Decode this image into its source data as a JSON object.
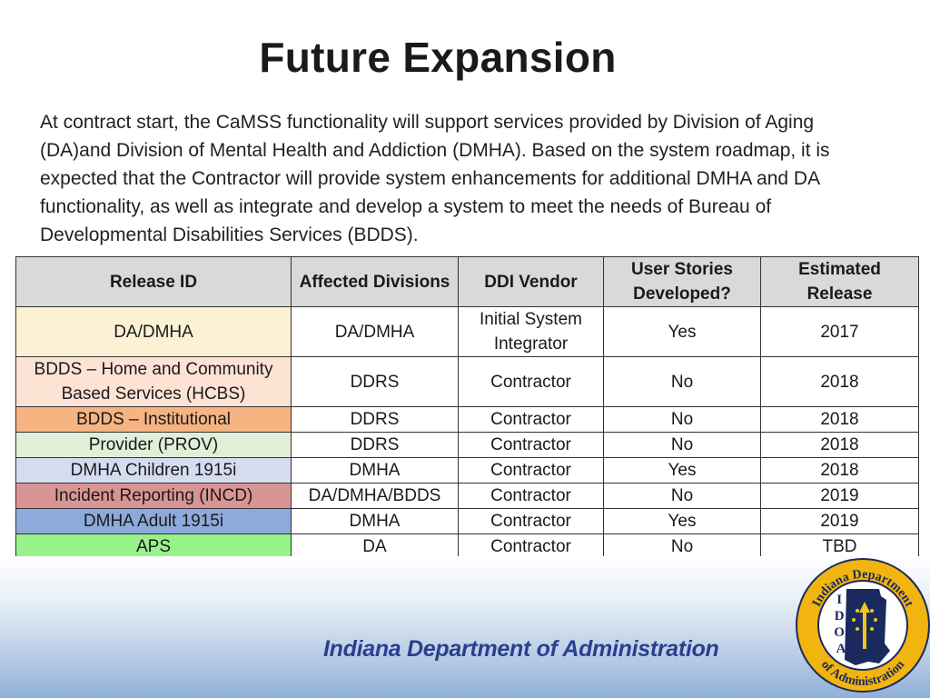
{
  "title": "Future Expansion",
  "intro": "At contract start, the CaMSS functionality will support services provided by Division of Aging (DA)and Division of Mental Health and Addiction (DMHA).  Based on the system roadmap, it is expected that the Contractor will provide system enhancements for additional DMHA and DA functionality, as well as integrate and develop a system to meet the needs of Bureau of Developmental Disabilities Services (BDDS).",
  "table": {
    "headers": [
      "Release ID",
      "Affected Divisions",
      "DDI Vendor",
      "User Stories Developed?",
      "Estimated Release"
    ],
    "rows": [
      {
        "release": "DA/DMHA",
        "color": "#fdf1d4",
        "divisions": "DA/DMHA",
        "vendor": "Initial System Integrator",
        "stories": "Yes",
        "est": "2017"
      },
      {
        "release": "BDDS – Home and Community Based Services (HCBS)",
        "color": "#fde3d4",
        "divisions": "DDRS",
        "vendor": "Contractor",
        "stories": "No",
        "est": "2018"
      },
      {
        "release": "BDDS – Institutional",
        "color": "#f6b483",
        "divisions": "DDRS",
        "vendor": "Contractor",
        "stories": "No",
        "est": "2018"
      },
      {
        "release": "Provider (PROV)",
        "color": "#e1efd8",
        "divisions": "DDRS",
        "vendor": "Contractor",
        "stories": "No",
        "est": "2018"
      },
      {
        "release": "DMHA Children 1915i",
        "color": "#d6dcf0",
        "divisions": "DMHA",
        "vendor": "Contractor",
        "stories": "Yes",
        "est": "2018"
      },
      {
        "release": "Incident Reporting (INCD)",
        "color": "#d99594",
        "divisions": "DA/DMHA/BDDS",
        "vendor": "Contractor",
        "stories": "No",
        "est": "2019"
      },
      {
        "release": "DMHA Adult 1915i",
        "color": "#8eaadc",
        "divisions": "DMHA",
        "vendor": "Contractor",
        "stories": "Yes",
        "est": "2019"
      },
      {
        "release": "APS",
        "color": "#98f18b",
        "divisions": "DA",
        "vendor": "Contractor",
        "stories": "No",
        "est": "TBD"
      }
    ]
  },
  "footer": {
    "agency_name": "Indiana Department of Administration",
    "seal_top_text": "Indiana Department",
    "seal_bottom_text": "of Administration",
    "seal_letters": [
      "I",
      "D",
      "O",
      "A"
    ]
  }
}
